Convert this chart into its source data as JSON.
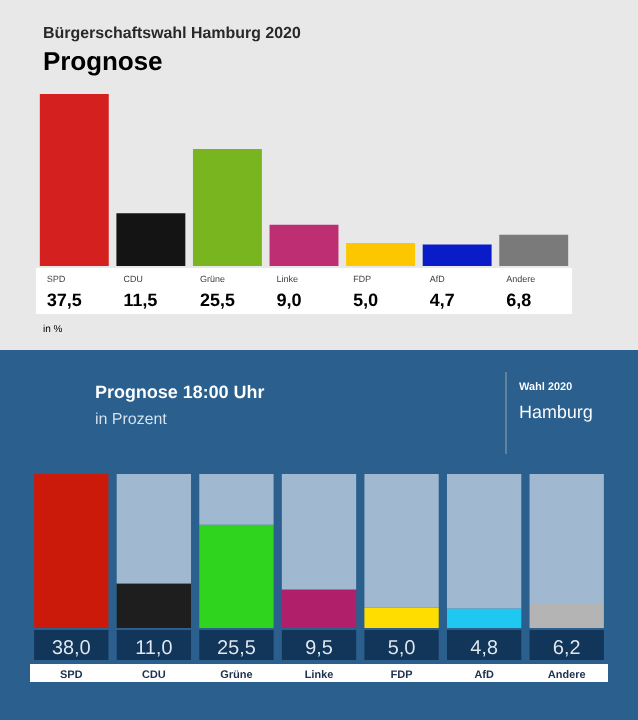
{
  "chart_data": [
    {
      "type": "bar",
      "title": "Bürgerschaftswahl Hamburg 2020",
      "subtitle": "Prognose",
      "categories": [
        "SPD",
        "CDU",
        "Grüne",
        "Linke",
        "FDP",
        "AfD",
        "Andere"
      ],
      "values": [
        37.5,
        11.5,
        25.5,
        9.0,
        5.0,
        4.7,
        6.8
      ],
      "value_labels": [
        "37,5",
        "11,5",
        "25,5",
        "9,0",
        "5,0",
        "4,7",
        "6,8"
      ],
      "colors": [
        "#d52020",
        "#141414",
        "#79b51e",
        "#be2e73",
        "#fdc700",
        "#0a1cc8",
        "#7a7a7a"
      ],
      "annotations": [
        "in %"
      ]
    },
    {
      "type": "bar",
      "title": "Prognose 18:00 Uhr",
      "subtitle": "in Prozent",
      "stacked": true,
      "categories": [
        "SPD",
        "CDU",
        "Grüne",
        "Linke",
        "FDP",
        "AfD",
        "Andere"
      ],
      "series": [
        {
          "values": [
            38.0,
            11.0,
            25.5,
            9.5,
            5.0,
            4.8,
            6.2
          ],
          "value_labels": [
            "38,0",
            "11,0",
            "25,5",
            "9,5",
            "5,0",
            "4,8",
            "6,2"
          ],
          "colors": [
            "#cc1a0a",
            "#1e1e1e",
            "#2ed41e",
            "#b0206a",
            "#ffdd00",
            "#1ec8f0",
            "#b4b4b4"
          ]
        },
        {
          "values": [
            0,
            27.0,
            12.5,
            28.5,
            33.0,
            33.2,
            31.8
          ],
          "color": "#a0b8d0"
        }
      ],
      "annotations": [
        "Wahl 2020",
        "Hamburg"
      ]
    }
  ]
}
